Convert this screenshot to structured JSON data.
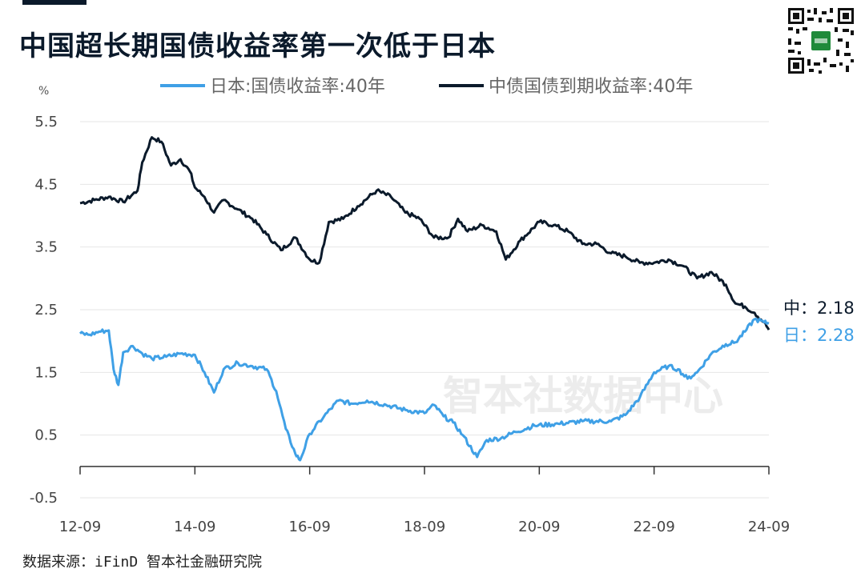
{
  "header": {
    "title": "中国超长期国债收益率第一次低于日本"
  },
  "footer": {
    "source": "数据来源：iFinD 智本社金融研究院"
  },
  "watermark": "智本社数据中心",
  "chart_data": {
    "type": "line",
    "title": "中国超长期国债收益率第一次低于日本",
    "y_unit": "%",
    "ylim": [
      -0.5,
      5.5
    ],
    "y_ticks": [
      5.5,
      4.5,
      3.5,
      2.5,
      1.5,
      0.5,
      -0.5
    ],
    "y_tick_labels": [
      "5.5",
      "4.5",
      "3.5",
      "2.5",
      "1.5",
      "0.5",
      "-0.5"
    ],
    "x_ticks": [
      "12-09",
      "14-09",
      "16-09",
      "18-09",
      "20-09",
      "22-09",
      "24-09"
    ],
    "grid": true,
    "legend_position": "top",
    "series": [
      {
        "name": "日本:国债收益率:40年",
        "color": "#3fa0e6",
        "end_label": "日：2.28",
        "points": [
          [
            "2012-09",
            2.12
          ],
          [
            "2012-11",
            2.1
          ],
          [
            "2013-01",
            2.15
          ],
          [
            "2013-03",
            2.17
          ],
          [
            "2013-04",
            1.55
          ],
          [
            "2013-05",
            1.3
          ],
          [
            "2013-06",
            1.82
          ],
          [
            "2013-08",
            1.92
          ],
          [
            "2013-10",
            1.8
          ],
          [
            "2013-12",
            1.72
          ],
          [
            "2014-03",
            1.75
          ],
          [
            "2014-06",
            1.8
          ],
          [
            "2014-09",
            1.78
          ],
          [
            "2014-11",
            1.5
          ],
          [
            "2015-01",
            1.18
          ],
          [
            "2015-03",
            1.55
          ],
          [
            "2015-06",
            1.65
          ],
          [
            "2015-09",
            1.6
          ],
          [
            "2015-12",
            1.55
          ],
          [
            "2016-02",
            1.2
          ],
          [
            "2016-04",
            0.6
          ],
          [
            "2016-06",
            0.2
          ],
          [
            "2016-07",
            0.1
          ],
          [
            "2016-09",
            0.52
          ],
          [
            "2016-12",
            0.8
          ],
          [
            "2017-03",
            1.05
          ],
          [
            "2017-06",
            1.0
          ],
          [
            "2017-09",
            1.05
          ],
          [
            "2018-01",
            0.98
          ],
          [
            "2018-05",
            0.9
          ],
          [
            "2018-09",
            0.85
          ],
          [
            "2018-11",
            0.98
          ],
          [
            "2019-01",
            0.8
          ],
          [
            "2019-03",
            0.7
          ],
          [
            "2019-05",
            0.5
          ],
          [
            "2019-08",
            0.15
          ],
          [
            "2019-10",
            0.42
          ],
          [
            "2020-01",
            0.45
          ],
          [
            "2020-04",
            0.55
          ],
          [
            "2020-08",
            0.65
          ],
          [
            "2021-01",
            0.68
          ],
          [
            "2021-06",
            0.72
          ],
          [
            "2021-12",
            0.72
          ],
          [
            "2022-03",
            0.82
          ],
          [
            "2022-06",
            1.1
          ],
          [
            "2022-09",
            1.5
          ],
          [
            "2022-12",
            1.6
          ],
          [
            "2023-02",
            1.55
          ],
          [
            "2023-04",
            1.4
          ],
          [
            "2023-06",
            1.5
          ],
          [
            "2023-09",
            1.8
          ],
          [
            "2023-12",
            1.95
          ],
          [
            "2024-02",
            1.98
          ],
          [
            "2024-04",
            2.15
          ],
          [
            "2024-06",
            2.35
          ],
          [
            "2024-08",
            2.3
          ],
          [
            "2024-09",
            2.28
          ]
        ]
      },
      {
        "name": "中债国债到期收益率:40年",
        "color": "#0b1a2b",
        "end_label": "中：2.18",
        "points": [
          [
            "2012-09",
            4.2
          ],
          [
            "2012-12",
            4.25
          ],
          [
            "2013-03",
            4.3
          ],
          [
            "2013-06",
            4.22
          ],
          [
            "2013-09",
            4.4
          ],
          [
            "2013-10",
            4.85
          ],
          [
            "2013-12",
            5.25
          ],
          [
            "2014-02",
            5.18
          ],
          [
            "2014-04",
            4.8
          ],
          [
            "2014-06",
            4.9
          ],
          [
            "2014-08",
            4.7
          ],
          [
            "2014-09",
            4.45
          ],
          [
            "2014-11",
            4.3
          ],
          [
            "2015-01",
            4.05
          ],
          [
            "2015-03",
            4.25
          ],
          [
            "2015-06",
            4.1
          ],
          [
            "2015-09",
            3.95
          ],
          [
            "2015-12",
            3.7
          ],
          [
            "2016-03",
            3.45
          ],
          [
            "2016-06",
            3.65
          ],
          [
            "2016-09",
            3.3
          ],
          [
            "2016-11",
            3.25
          ],
          [
            "2017-01",
            3.9
          ],
          [
            "2017-04",
            3.95
          ],
          [
            "2017-07",
            4.15
          ],
          [
            "2017-11",
            4.4
          ],
          [
            "2018-02",
            4.3
          ],
          [
            "2018-05",
            4.05
          ],
          [
            "2018-08",
            3.95
          ],
          [
            "2018-11",
            3.65
          ],
          [
            "2019-02",
            3.65
          ],
          [
            "2019-04",
            3.95
          ],
          [
            "2019-06",
            3.75
          ],
          [
            "2019-09",
            3.85
          ],
          [
            "2019-12",
            3.75
          ],
          [
            "2020-02",
            3.3
          ],
          [
            "2020-05",
            3.6
          ],
          [
            "2020-09",
            3.9
          ],
          [
            "2020-12",
            3.85
          ],
          [
            "2021-03",
            3.75
          ],
          [
            "2021-06",
            3.55
          ],
          [
            "2021-09",
            3.55
          ],
          [
            "2021-12",
            3.4
          ],
          [
            "2022-03",
            3.35
          ],
          [
            "2022-06",
            3.25
          ],
          [
            "2022-09",
            3.25
          ],
          [
            "2022-12",
            3.3
          ],
          [
            "2023-03",
            3.2
          ],
          [
            "2023-06",
            3.0
          ],
          [
            "2023-09",
            3.1
          ],
          [
            "2023-12",
            2.9
          ],
          [
            "2024-02",
            2.6
          ],
          [
            "2024-04",
            2.55
          ],
          [
            "2024-06",
            2.45
          ],
          [
            "2024-08",
            2.3
          ],
          [
            "2024-09",
            2.18
          ]
        ]
      }
    ]
  }
}
